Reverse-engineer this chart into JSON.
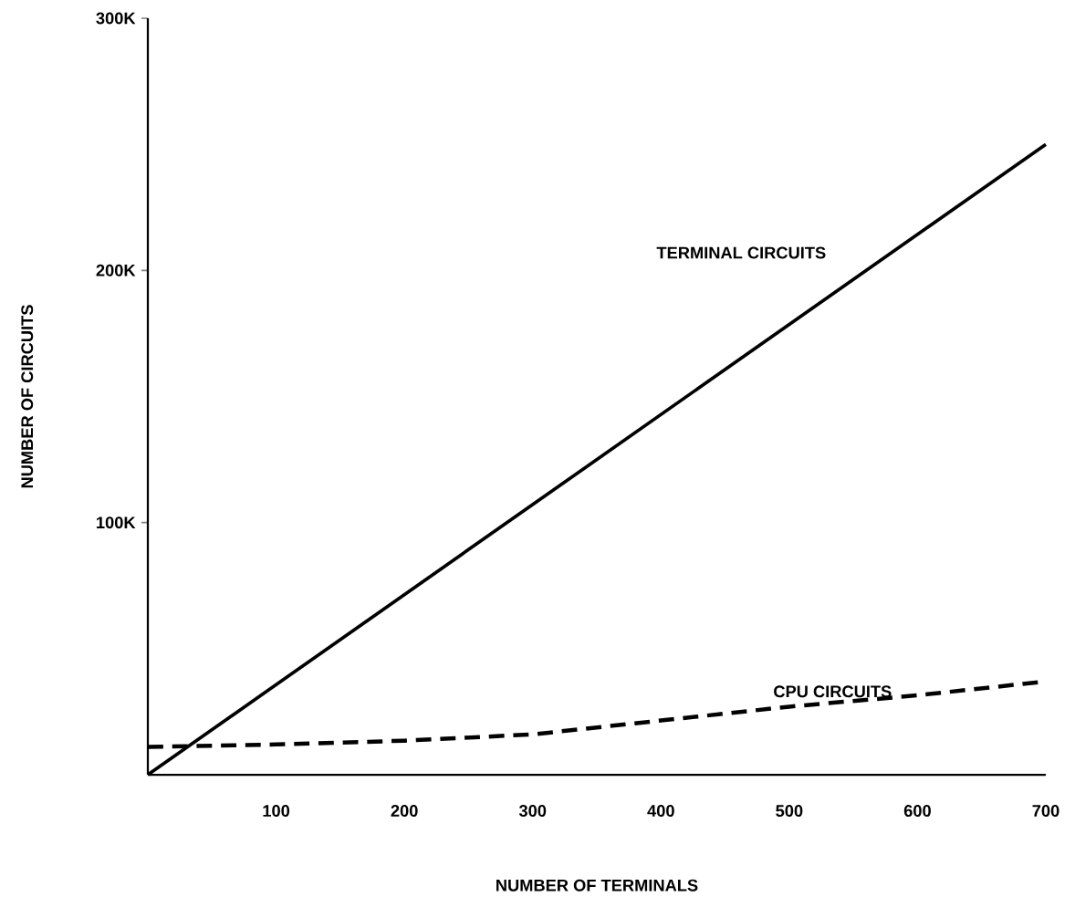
{
  "chart_data": {
    "type": "line",
    "xlabel": "NUMBER OF TERMINALS",
    "ylabel": "NUMBER OF CIRCUITS",
    "xlim": [
      0,
      700
    ],
    "ylim": [
      0,
      300000
    ],
    "xticks": [
      100,
      200,
      300,
      400,
      500,
      600,
      700
    ],
    "yticks": [
      {
        "value": 100000,
        "label": "100K"
      },
      {
        "value": 200000,
        "label": "200K"
      },
      {
        "value": 300000,
        "label": "300K"
      }
    ],
    "grid": false,
    "marker": "none",
    "series": [
      {
        "name": "TERMINAL CIRCUITS",
        "color": "#000000",
        "line_style": "solid",
        "x": [
          0,
          700
        ],
        "values": [
          0,
          250000
        ]
      },
      {
        "name": "CPU CIRCUITS",
        "color": "#000000",
        "line_style": "dashed",
        "x": [
          0,
          100,
          200,
          300,
          400,
          500,
          600,
          700
        ],
        "values": [
          11000,
          12000,
          13500,
          16000,
          21500,
          27000,
          31500,
          37000
        ]
      }
    ]
  }
}
